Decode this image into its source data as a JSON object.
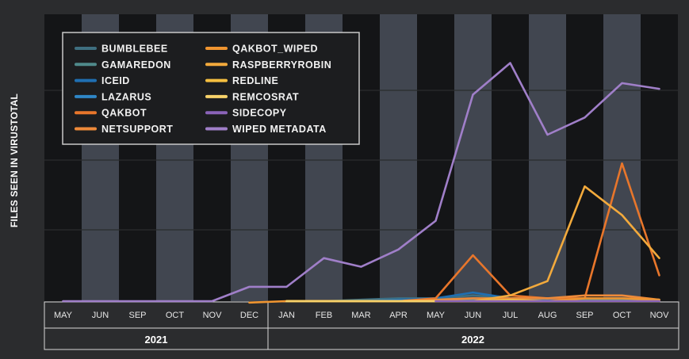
{
  "chart_data": {
    "type": "line",
    "title": "",
    "xlabel": "",
    "ylabel": "FILES SEEN IN VIRUSTOTAL",
    "categories": [
      "MAY",
      "JUN",
      "SEP",
      "OCT",
      "NOV",
      "DEC",
      "JAN",
      "FEB",
      "MAR",
      "APR",
      "MAY",
      "JUN",
      "JUL",
      "AUG",
      "SEP",
      "OCT",
      "NOV"
    ],
    "year_groups": [
      {
        "label": "2021",
        "start": 0,
        "end": 5
      },
      {
        "label": "2022",
        "start": 6,
        "end": 16
      }
    ],
    "ylim": [
      0,
      100
    ],
    "grid": true,
    "legend_position": "top-left",
    "series": [
      {
        "name": "BUMBLEBEE",
        "color": "#3f6f80",
        "values": [
          null,
          null,
          null,
          null,
          null,
          null,
          0,
          0,
          0.5,
          1,
          1,
          2,
          1,
          1,
          1,
          0.5,
          0.5
        ]
      },
      {
        "name": "GAMAREDON",
        "color": "#4f8a8b",
        "values": [
          null,
          null,
          null,
          null,
          null,
          null,
          0,
          0,
          0,
          0.5,
          0.5,
          0.5,
          1,
          1,
          0.5,
          0.5,
          0.5
        ]
      },
      {
        "name": "ICEID",
        "color": "#1f6fb2",
        "values": [
          null,
          null,
          null,
          null,
          null,
          null,
          0,
          0,
          0,
          0.5,
          1,
          3,
          1,
          0.5,
          0,
          0,
          0
        ]
      },
      {
        "name": "LAZARUS",
        "color": "#2f86c6",
        "values": [
          null,
          null,
          null,
          null,
          null,
          null,
          0,
          0,
          0,
          0,
          0.5,
          1,
          0.5,
          0,
          0,
          0,
          0
        ]
      },
      {
        "name": "QAKBOT",
        "color": "#e8762b",
        "values": [
          null,
          null,
          null,
          null,
          null,
          null,
          0,
          0,
          0,
          0,
          1,
          16,
          2,
          1,
          1,
          48,
          9
        ]
      },
      {
        "name": "NETSUPPORT",
        "color": "#ee8a3a",
        "values": [
          null,
          null,
          null,
          null,
          null,
          null,
          0,
          0,
          0,
          0,
          0.5,
          1,
          1,
          1,
          2,
          2,
          0.5
        ]
      },
      {
        "name": "QAKBOT_WIPED",
        "color": "#f09530",
        "values": [
          null,
          null,
          null,
          null,
          null,
          -0.5,
          0,
          0,
          0,
          0,
          0,
          0,
          0,
          0,
          1,
          1,
          0.5
        ]
      },
      {
        "name": "RASPBERRYROBIN",
        "color": "#f3aa3c",
        "values": [
          null,
          null,
          null,
          null,
          null,
          null,
          0,
          0,
          0,
          0,
          0,
          0,
          2,
          7,
          40,
          30,
          15
        ]
      },
      {
        "name": "REDLINE",
        "color": "#f5bf40",
        "values": [
          null,
          null,
          null,
          null,
          null,
          null,
          0,
          0,
          0,
          0,
          0,
          0,
          0.5,
          0,
          0,
          0,
          0
        ]
      },
      {
        "name": "REMCOSRAT",
        "color": "#f7d26a",
        "values": [
          null,
          null,
          null,
          null,
          null,
          null,
          0,
          0,
          0,
          0,
          0,
          0,
          0,
          0,
          0,
          0,
          0
        ]
      },
      {
        "name": "SIDECOPY",
        "color": "#8a63b8",
        "values": [
          null,
          null,
          null,
          null,
          null,
          null,
          null,
          null,
          null,
          null,
          0,
          0,
          0,
          0,
          0,
          0,
          0
        ]
      },
      {
        "name": "WIPED METADATA",
        "color": "#a07fc9",
        "values": [
          0,
          0,
          0,
          0,
          0,
          5,
          5,
          15,
          12,
          18,
          28,
          72,
          83,
          58,
          64,
          76,
          74
        ]
      }
    ]
  }
}
